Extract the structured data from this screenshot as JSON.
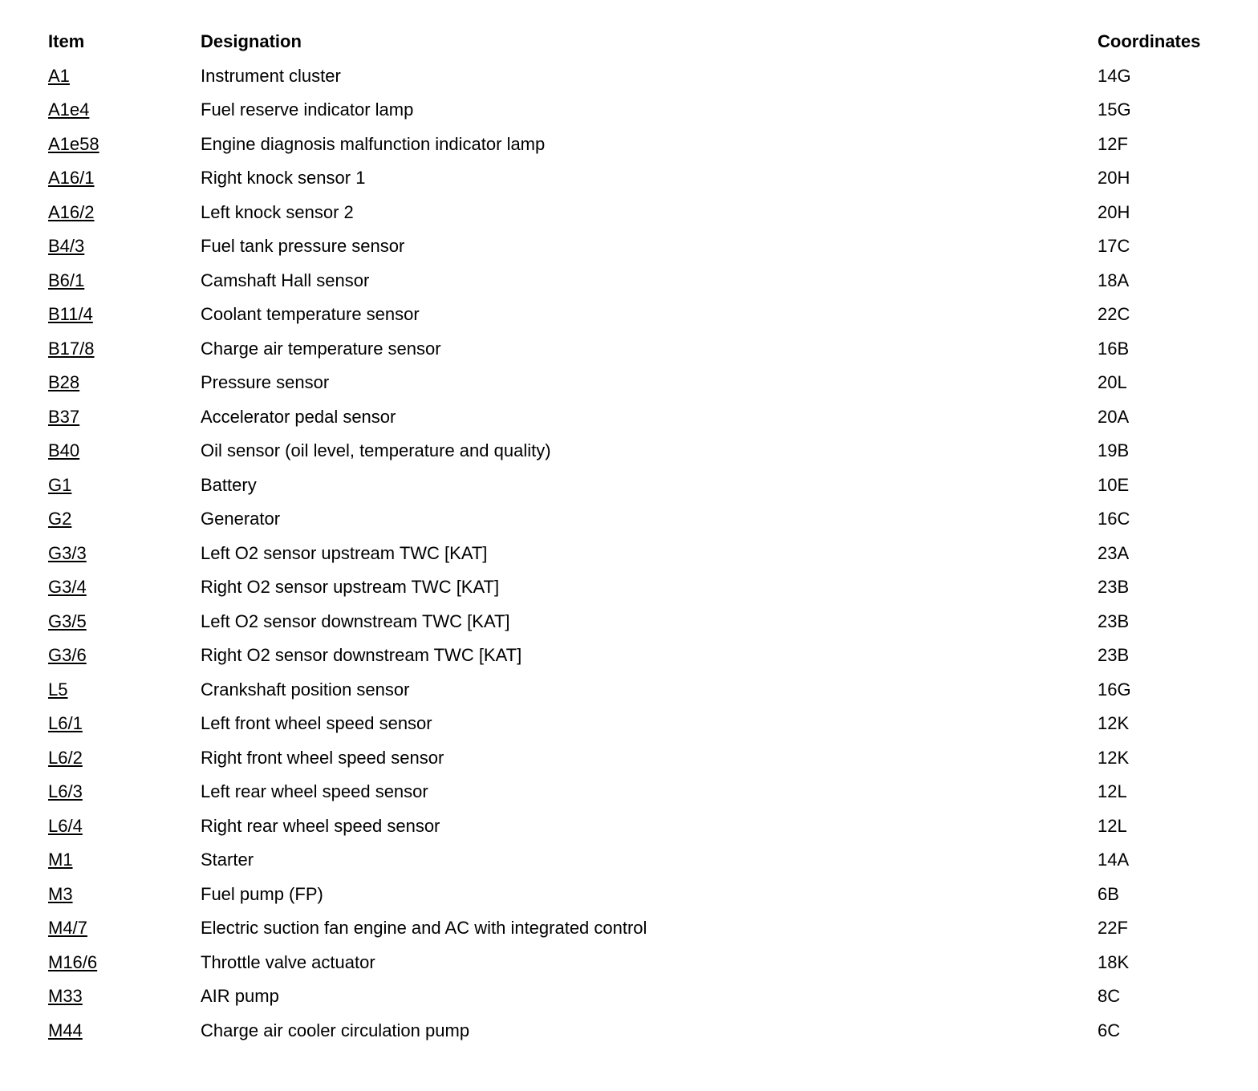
{
  "page": {
    "background_color": "#ffffff",
    "text_color": "#000000"
  },
  "table": {
    "headers": {
      "item": "Item",
      "designation": "Designation",
      "coordinates": "Coordinates"
    },
    "rows": [
      {
        "item": "A1",
        "designation": "Instrument cluster",
        "coordinates": "14G"
      },
      {
        "item": "A1e4",
        "designation": "Fuel reserve indicator lamp",
        "coordinates": "15G"
      },
      {
        "item": "A1e58",
        "designation": "Engine diagnosis malfunction indicator lamp",
        "coordinates": "12F"
      },
      {
        "item": "A16/1",
        "designation": "Right knock sensor 1",
        "coordinates": "20H"
      },
      {
        "item": "A16/2",
        "designation": "Left knock sensor 2",
        "coordinates": "20H"
      },
      {
        "item": "B4/3",
        "designation": "Fuel tank pressure sensor",
        "coordinates": "17C"
      },
      {
        "item": "B6/1",
        "designation": "Camshaft Hall sensor",
        "coordinates": "18A"
      },
      {
        "item": "B11/4",
        "designation": "Coolant temperature sensor",
        "coordinates": "22C"
      },
      {
        "item": "B17/8",
        "designation": "Charge air temperature sensor",
        "coordinates": "16B"
      },
      {
        "item": "B28",
        "designation": "Pressure sensor",
        "coordinates": "20L"
      },
      {
        "item": "B37",
        "designation": "Accelerator pedal sensor",
        "coordinates": "20A"
      },
      {
        "item": "B40",
        "designation": "Oil sensor (oil level, temperature and quality)",
        "coordinates": "19B"
      },
      {
        "item": "G1",
        "designation": "Battery",
        "coordinates": "10E"
      },
      {
        "item": "G2",
        "designation": "Generator",
        "coordinates": "16C"
      },
      {
        "item": "G3/3",
        "designation": "Left O2 sensor upstream TWC [KAT]",
        "coordinates": "23A"
      },
      {
        "item": "G3/4",
        "designation": "Right O2 sensor upstream TWC [KAT]",
        "coordinates": "23B"
      },
      {
        "item": "G3/5",
        "designation": "Left O2 sensor downstream TWC [KAT]",
        "coordinates": "23B"
      },
      {
        "item": "G3/6",
        "designation": "Right O2 sensor downstream TWC [KAT]",
        "coordinates": "23B"
      },
      {
        "item": "L5",
        "designation": "Crankshaft position sensor",
        "coordinates": "16G"
      },
      {
        "item": "L6/1",
        "designation": "Left front wheel speed sensor",
        "coordinates": "12K"
      },
      {
        "item": "L6/2",
        "designation": "Right front wheel speed sensor",
        "coordinates": "12K"
      },
      {
        "item": "L6/3",
        "designation": "Left rear wheel speed sensor",
        "coordinates": "12L"
      },
      {
        "item": "L6/4",
        "designation": "Right rear wheel speed sensor",
        "coordinates": "12L"
      },
      {
        "item": "M1",
        "designation": "Starter",
        "coordinates": "14A"
      },
      {
        "item": "M3",
        "designation": "Fuel pump (FP)",
        "coordinates": "6B"
      },
      {
        "item": "M4/7",
        "designation": "Electric suction fan engine and AC with integrated control",
        "coordinates": "22F"
      },
      {
        "item": "M16/6",
        "designation": "Throttle valve actuator",
        "coordinates": "18K"
      },
      {
        "item": "M33",
        "designation": "AIR pump",
        "coordinates": "8C"
      },
      {
        "item": "M44",
        "designation": "Charge air cooler circulation pump",
        "coordinates": "6C"
      }
    ]
  }
}
